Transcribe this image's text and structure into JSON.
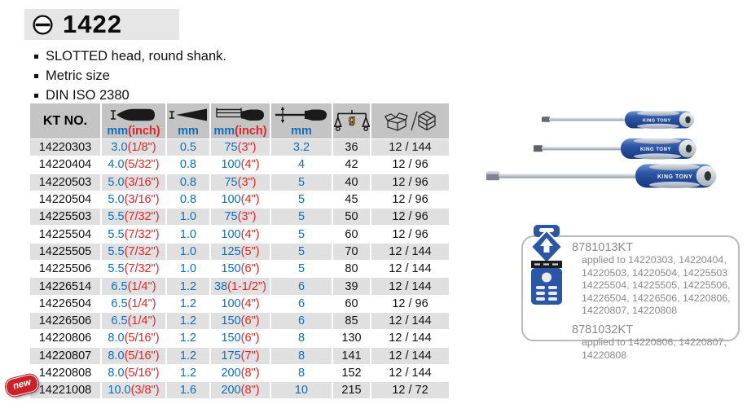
{
  "product": {
    "model": "1422",
    "brand": "KING TONY",
    "features": [
      "SLOTTED head, round shank.",
      "Metric size",
      "DIN ISO 2380"
    ]
  },
  "table": {
    "kt_header": "KT NO.",
    "weight_unit": "g",
    "columns": [
      {
        "name": "tip-width",
        "icon": "blade-width-icon",
        "mm": "mm",
        "inch": "(inch)"
      },
      {
        "name": "tip-thickness",
        "icon": "blade-thickness-icon",
        "mm": "mm"
      },
      {
        "name": "blade-length",
        "icon": "blade-length-icon",
        "mm": "mm",
        "inch": "(inch)"
      },
      {
        "name": "shank-diameter",
        "icon": "shank-diameter-icon",
        "mm": "mm"
      },
      {
        "name": "weight",
        "icon": "weight-scale-icon"
      },
      {
        "name": "packing",
        "icon": "packing-boxes-icon"
      }
    ],
    "rows": [
      {
        "kt": "14220303",
        "a_mm": "3.0",
        "a_in": "(1/8\")",
        "b": "0.5",
        "c_mm": "75",
        "c_in": "(3\")",
        "d": "3.2",
        "g": "36",
        "pack": "12 / 144"
      },
      {
        "kt": "14220404",
        "a_mm": "4.0",
        "a_in": "(5/32\")",
        "b": "0.8",
        "c_mm": "100",
        "c_in": "(4\")",
        "d": "4",
        "g": "42",
        "pack": "12 / 96"
      },
      {
        "kt": "14220503",
        "a_mm": "5.0",
        "a_in": "(3/16\")",
        "b": "0.8",
        "c_mm": "75",
        "c_in": "(3\")",
        "d": "5",
        "g": "40",
        "pack": "12 / 96"
      },
      {
        "kt": "14220504",
        "a_mm": "5.0",
        "a_in": "(3/16\")",
        "b": "0.8",
        "c_mm": "100",
        "c_in": "(4\")",
        "d": "5",
        "g": "45",
        "pack": "12 / 96"
      },
      {
        "kt": "14225503",
        "a_mm": "5.5",
        "a_in": "(7/32\")",
        "b": "1.0",
        "c_mm": "75",
        "c_in": "(3\")",
        "d": "5",
        "g": "50",
        "pack": "12 / 96"
      },
      {
        "kt": "14225504",
        "a_mm": "5.5",
        "a_in": "(7/32\")",
        "b": "1.0",
        "c_mm": "100",
        "c_in": "(4\")",
        "d": "5",
        "g": "60",
        "pack": "12 / 96"
      },
      {
        "kt": "14225505",
        "a_mm": "5.5",
        "a_in": "(7/32\")",
        "b": "1.0",
        "c_mm": "125",
        "c_in": "(5\")",
        "d": "5",
        "g": "70",
        "pack": "12 / 144"
      },
      {
        "kt": "14225506",
        "a_mm": "5.5",
        "a_in": "(7/32\")",
        "b": "1.0",
        "c_mm": "150",
        "c_in": "(6\")",
        "d": "5",
        "g": "80",
        "pack": "12 / 144"
      },
      {
        "kt": "14226514",
        "a_mm": "6.5",
        "a_in": "(1/4\")",
        "b": "1.2",
        "c_mm": "38",
        "c_in": "(1-1/2\")",
        "d": "6",
        "g": "39",
        "pack": "12 / 144"
      },
      {
        "kt": "14226504",
        "a_mm": "6.5",
        "a_in": "(1/4\")",
        "b": "1.2",
        "c_mm": "100",
        "c_in": "(4\")",
        "d": "6",
        "g": "60",
        "pack": "12 / 96"
      },
      {
        "kt": "14226506",
        "a_mm": "6.5",
        "a_in": "(1/4\")",
        "b": "1.2",
        "c_mm": "150",
        "c_in": "(6\")",
        "d": "6",
        "g": "85",
        "pack": "12 / 144"
      },
      {
        "kt": "14220806",
        "a_mm": "8.0",
        "a_in": "(5/16\")",
        "b": "1.2",
        "c_mm": "150",
        "c_in": "(6\")",
        "d": "8",
        "g": "130",
        "pack": "12 / 144"
      },
      {
        "kt": "14220807",
        "a_mm": "8.0",
        "a_in": "(5/16\")",
        "b": "1.2",
        "c_mm": "175",
        "c_in": "(7\")",
        "d": "8",
        "g": "141",
        "pack": "12 / 144"
      },
      {
        "kt": "14220808",
        "a_mm": "8.0",
        "a_in": "(5/16\")",
        "b": "1.2",
        "c_mm": "200",
        "c_in": "(8\")",
        "d": "8",
        "g": "152",
        "pack": "12 / 144"
      },
      {
        "kt": "14221008",
        "a_mm": "10.0",
        "a_in": "(3/8\")",
        "b": "1.6",
        "c_mm": "200",
        "c_in": "(8\")",
        "d": "10",
        "g": "215",
        "pack": "12 / 72",
        "is_new": true
      }
    ]
  },
  "accessories": {
    "items": [
      {
        "part_no": "8781013KT",
        "applied_to": "applied to 14220303, 14220404,\n14220503, 14220504, 14225503\n14225504, 14225505, 14225506,\n14226504, 14226506, 14220806,\n14220807, 14220808"
      },
      {
        "part_no": "8781032KT",
        "applied_to": "applied to 14220806, 14220807,\n14220808"
      }
    ]
  },
  "badge": {
    "new_label": "new"
  },
  "colors": {
    "accent_blue": "#0e6fbe",
    "accent_red": "#e42528",
    "header_gray": "#c4c4c4",
    "row_gray": "#e0e0e0",
    "band_gray": "#e6e6e6",
    "badge_red": "#cd2027",
    "handle_blue": "#2a56a5",
    "info_text_gray": "#8a8a8a",
    "weight_g_orange": "#f09c00"
  }
}
